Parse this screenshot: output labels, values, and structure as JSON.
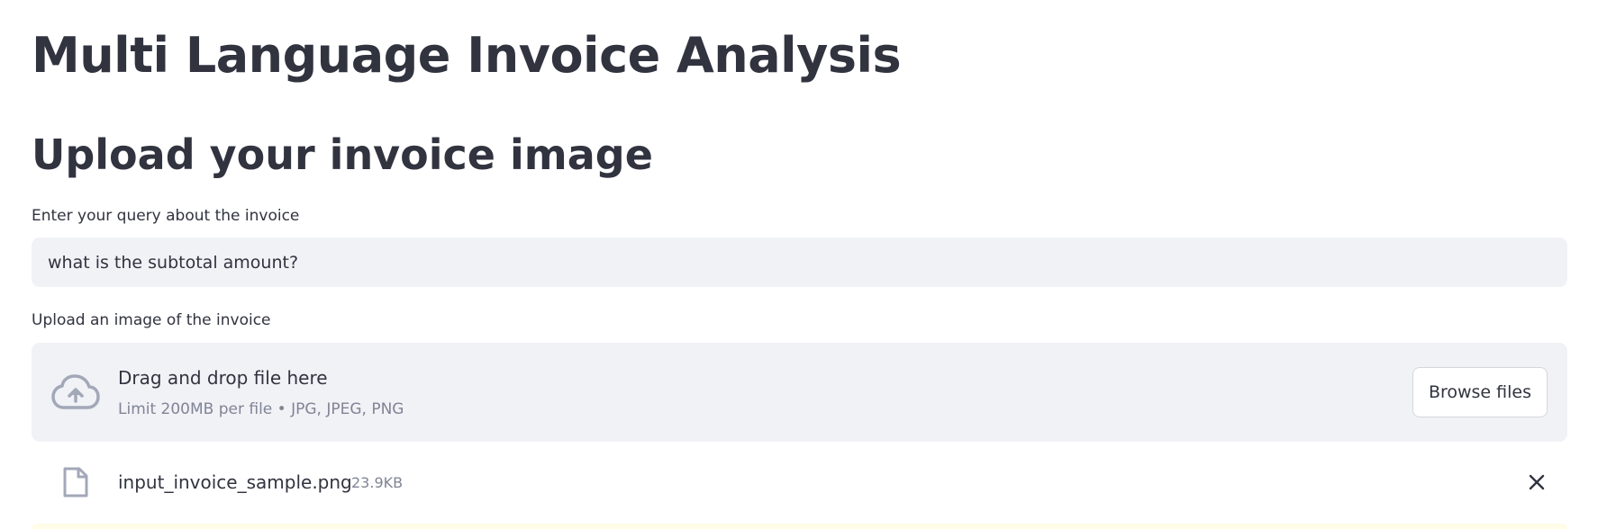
{
  "header": {
    "title": "Multi Language Invoice Analysis",
    "subtitle": "Upload your invoice image"
  },
  "query": {
    "label": "Enter your query about the invoice",
    "value": "what is the subtotal amount?"
  },
  "uploader": {
    "label": "Upload an image of the invoice",
    "drop_text": "Drag and drop file here",
    "limit_text": "Limit 200MB per file • JPG, JPEG, PNG",
    "browse_label": "Browse files",
    "icon": "cloud-upload-icon"
  },
  "uploaded_file": {
    "name": "input_invoice_sample.png",
    "size": "23.9KB",
    "icon": "file-icon",
    "remove_icon": "close-icon"
  },
  "colors": {
    "text": "#31333f",
    "muted": "#808495",
    "input_bg": "#f0f2f6",
    "icon": "#a3a8b8",
    "alert_bg": "#fffce7"
  }
}
